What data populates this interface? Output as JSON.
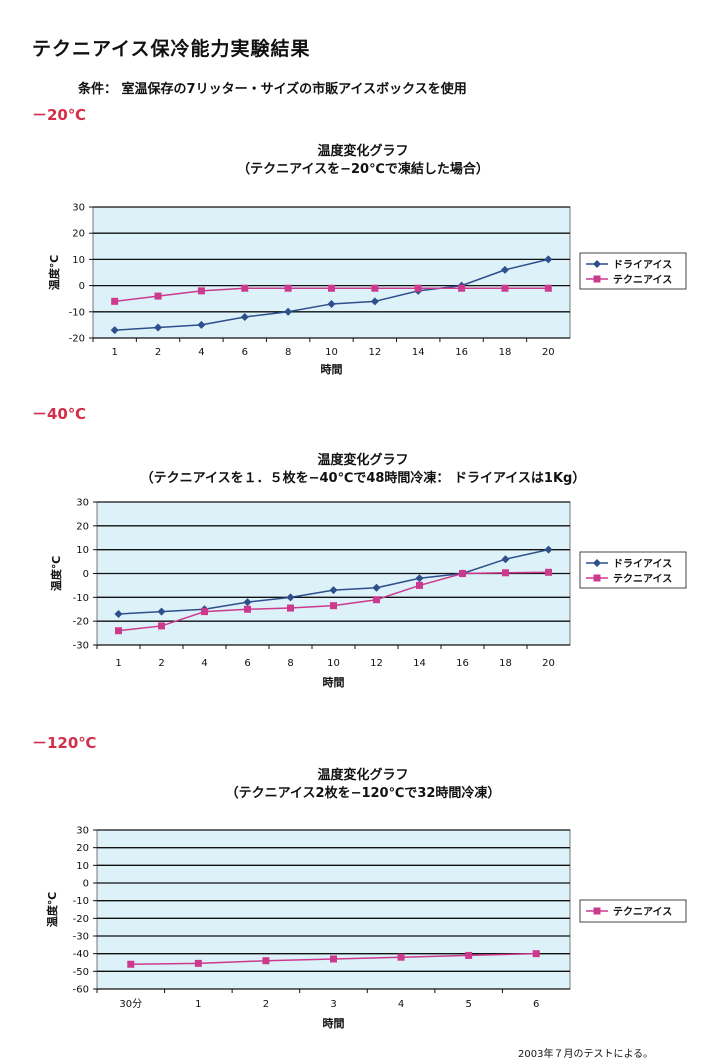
{
  "page": {
    "title": "テクニアイス保冷能力実験結果",
    "conditions": "条件：  室温保存の7リッター・サイズの市販アイスボックスを使用",
    "footnote": "2003年７月のテストによる。"
  },
  "sections": [
    {
      "temp_label": "－20℃"
    },
    {
      "temp_label": "－40℃"
    },
    {
      "temp_label": "－120℃"
    }
  ],
  "colors": {
    "dry_ice": "#2e4f8c",
    "techni_ice": "#cc3a8e",
    "plot_bg": "#dcf1f8"
  },
  "chart_data": [
    {
      "type": "line",
      "title": "温度変化グラフ",
      "subtitle": "（テクニアイスを−20℃で凍結した場合）",
      "xlabel": "時間",
      "ylabel": "温度℃",
      "categories": [
        "1",
        "2",
        "4",
        "6",
        "8",
        "10",
        "12",
        "14",
        "16",
        "18",
        "20"
      ],
      "ylim": [
        -20,
        30
      ],
      "yticks": [
        "30",
        "20",
        "10",
        "0",
        "-10",
        "-20"
      ],
      "grid": true,
      "legend": "right",
      "series": [
        {
          "name": "ドライアイス",
          "marker": "diamond",
          "color": "#2e4f8c",
          "values": [
            -17,
            -16,
            -15,
            -12,
            -10,
            -7,
            -6,
            -2,
            0,
            6,
            10
          ]
        },
        {
          "name": "テクニアイス",
          "marker": "square",
          "color": "#cc3a8e",
          "values": [
            -6,
            -4,
            -2,
            -1,
            -1,
            -1,
            -1,
            -1,
            -1,
            -1,
            -1
          ]
        }
      ]
    },
    {
      "type": "line",
      "title": "温度変化グラフ",
      "subtitle": "（テクニアイスを１．５枚を−40℃で48時間冷凍：  ドライアイスは1Kg）",
      "xlabel": "時間",
      "ylabel": "温度℃",
      "categories": [
        "1",
        "2",
        "4",
        "6",
        "8",
        "10",
        "12",
        "14",
        "16",
        "18",
        "20"
      ],
      "ylim": [
        -30,
        30
      ],
      "yticks": [
        "30",
        "20",
        "10",
        "0",
        "-10",
        "-20",
        "-30"
      ],
      "grid": true,
      "legend": "right",
      "series": [
        {
          "name": "ドライアイス",
          "marker": "diamond",
          "color": "#2e4f8c",
          "values": [
            -17,
            -16,
            -15,
            -12,
            -10,
            -7,
            -6,
            -2,
            0,
            6,
            10
          ]
        },
        {
          "name": "テクニアイス",
          "marker": "square",
          "color": "#cc3a8e",
          "values": [
            -24,
            -22,
            -16,
            -15,
            -14.5,
            -13.5,
            -11,
            -5,
            0,
            0.3,
            0.5
          ]
        }
      ]
    },
    {
      "type": "line",
      "title": "温度変化グラフ",
      "subtitle": "（テクニアイス2枚を−120℃で32時間冷凍）",
      "xlabel": "時間",
      "ylabel": "温度℃",
      "categories": [
        "30分",
        "1",
        "2",
        "3",
        "4",
        "5",
        "6"
      ],
      "ylim": [
        -60,
        30
      ],
      "yticks": [
        "30",
        "20",
        "10",
        "0",
        "-10",
        "-20",
        "-30",
        "-40",
        "-50",
        "-60"
      ],
      "grid": true,
      "legend": "right",
      "series": [
        {
          "name": "テクニアイス",
          "marker": "square",
          "color": "#cc3a8e",
          "values": [
            -46,
            -45.5,
            -44,
            -43,
            -42,
            -41,
            -40
          ]
        }
      ]
    }
  ]
}
